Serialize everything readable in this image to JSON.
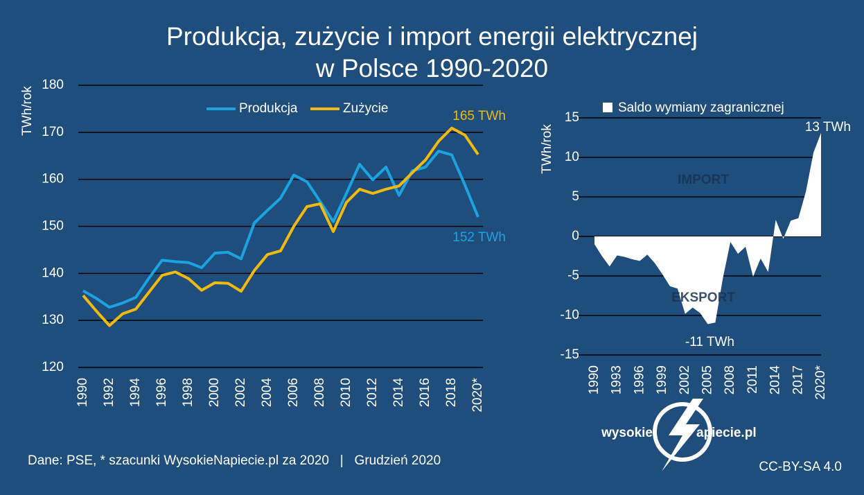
{
  "chart_data": [
    {
      "type": "line",
      "title": "Produkcja, zużycie i import energii elektrycznej\nw Polsce 1990-2020",
      "y_label": "TWh/rok",
      "categories": [
        "1990",
        null,
        "1992",
        null,
        "1994",
        null,
        "1996",
        null,
        "1998",
        null,
        "2000",
        null,
        "2002",
        null,
        "2004",
        null,
        "2006",
        null,
        "2008",
        null,
        "2010",
        null,
        "2012",
        null,
        "2014",
        null,
        "2016",
        null,
        "2018",
        null,
        "2020*"
      ],
      "series": [
        {
          "name": "Produkcja",
          "color": "#1aa3e0",
          "values": [
            136.3,
            134.7,
            132.8,
            133.7,
            134.9,
            139.0,
            142.8,
            142.5,
            142.3,
            141.2,
            144.3,
            144.5,
            143.1,
            150.7,
            153.4,
            156.0,
            160.9,
            159.5,
            155.3,
            151.0,
            157.0,
            163.2,
            159.9,
            162.6,
            156.6,
            161.8,
            162.6,
            166.0,
            165.2,
            158.8,
            152.0
          ]
        },
        {
          "name": "Zużycie",
          "color": "#f2b90f",
          "values": [
            135.3,
            132.0,
            128.9,
            131.4,
            132.4,
            136.0,
            139.6,
            140.3,
            138.9,
            136.4,
            138.0,
            137.9,
            136.2,
            140.6,
            144.0,
            144.8,
            150.0,
            154.2,
            154.8,
            148.9,
            155.1,
            157.9,
            157.0,
            157.9,
            158.6,
            161.4,
            164.1,
            168.1,
            170.9,
            169.4,
            165.3
          ]
        }
      ],
      "annotations": [
        {
          "text": "165 TWh",
          "color": "#f2b90f"
        },
        {
          "text": "152  TWh",
          "color": "#1aa3e0"
        }
      ],
      "ylim": [
        120,
        180
      ],
      "yticks": [
        120,
        130,
        140,
        150,
        160,
        170,
        180
      ],
      "grid": true,
      "grid_color": "#000000"
    },
    {
      "type": "area",
      "y_label": "TWh/rok",
      "categories": [
        "1990",
        null,
        null,
        "1993",
        null,
        null,
        "1996",
        null,
        null,
        "1999",
        null,
        null,
        "2002",
        null,
        null,
        "2005",
        null,
        null,
        "2008",
        null,
        null,
        "2011",
        null,
        null,
        "2014",
        null,
        null,
        "2017",
        null,
        null,
        "2020*"
      ],
      "series": [
        {
          "name": "Saldo wymiany zagranicznej",
          "color": "#ffffff",
          "values": [
            -1.0,
            -2.5,
            -3.8,
            -2.4,
            -2.6,
            -2.9,
            -3.1,
            -2.3,
            -3.4,
            -4.8,
            -6.3,
            -6.6,
            -9.8,
            -9.0,
            -9.7,
            -11.1,
            -10.9,
            -5.3,
            -0.7,
            -2.2,
            -1.3,
            -5.1,
            -2.8,
            -4.5,
            2.1,
            -0.3,
            2.0,
            2.3,
            5.7,
            10.6,
            13.1
          ]
        }
      ],
      "annotations": [
        {
          "text": "13 TWh",
          "color": "#ffffff"
        },
        {
          "text": "-11 TWh",
          "color": "#ffffff"
        },
        {
          "text": "IMPORT",
          "color": "#1b3350"
        },
        {
          "text": "EKSPORT",
          "color": "#1b3350"
        }
      ],
      "ylim": [
        -15,
        15
      ],
      "yticks": [
        -15,
        -10,
        -5,
        0,
        5,
        10,
        15
      ],
      "grid": true,
      "grid_color": "#000000"
    }
  ],
  "footer": {
    "source": "Dane: PSE, * szacunki WysokieNapiecie.pl za 2020   |   Grudzień 2020",
    "logo_left": "wysokie",
    "logo_right": "apiecie.pl",
    "license": "CC-BY-SA 4.0"
  }
}
